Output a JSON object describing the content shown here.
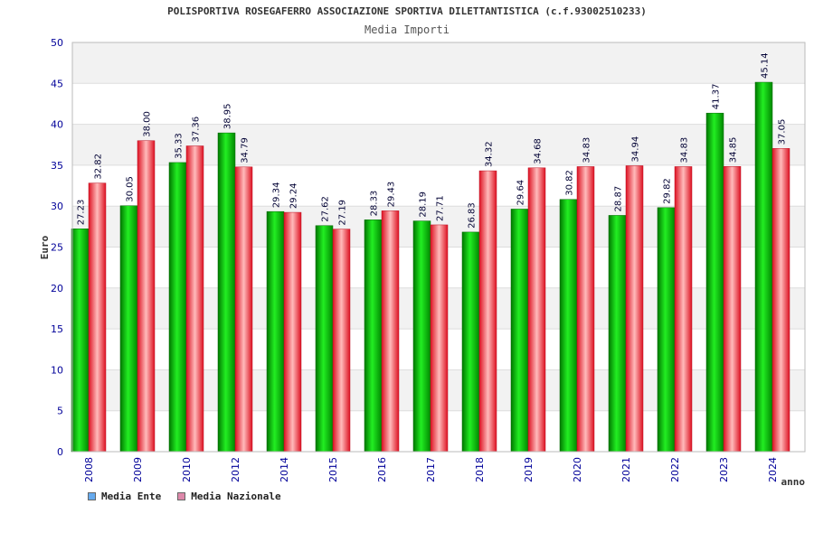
{
  "chart_data": {
    "type": "bar",
    "title": "POLISPORTIVA ROSEGAFERRO ASSOCIAZIONE SPORTIVA DILETTANTISTICA (c.f.93002510233)",
    "subtitle": "Media Importi",
    "ylabel": "Euro",
    "xlabel": "anno",
    "ylim": [
      0,
      50
    ],
    "yticks": [
      0,
      5,
      10,
      15,
      20,
      25,
      30,
      35,
      40,
      45,
      50
    ],
    "categories": [
      "2008",
      "2009",
      "2010",
      "2012",
      "2014",
      "2015",
      "2016",
      "2017",
      "2018",
      "2019",
      "2020",
      "2021",
      "2022",
      "2023",
      "2024"
    ],
    "series": [
      {
        "name": "Media Ente",
        "values": [
          27.23,
          30.05,
          35.33,
          38.95,
          29.34,
          27.62,
          28.33,
          28.19,
          26.83,
          29.64,
          30.82,
          28.87,
          29.82,
          41.37,
          45.14
        ],
        "labels": [
          "27.23",
          "30.05",
          "35.33",
          "38.95",
          "29.34",
          "27.62",
          "28.33",
          "28.19",
          "26.83",
          "29.64",
          "30.82",
          "28.87",
          "29.82",
          "41.37",
          "45.14"
        ]
      },
      {
        "name": "Media Nazionale",
        "values": [
          32.82,
          38.0,
          37.36,
          34.79,
          29.24,
          27.19,
          29.43,
          27.71,
          34.32,
          34.68,
          34.83,
          34.94,
          34.83,
          34.85,
          37.05
        ],
        "labels": [
          "32.82",
          "38.00",
          "37.36",
          "34.79",
          "29.24",
          "27.19",
          "29.43",
          "27.71",
          "34.32",
          "34.68",
          "34.83",
          "34.94",
          "34.83",
          "34.85",
          "37.05"
        ]
      }
    ],
    "grid": true,
    "legend": "bottom-left"
  },
  "colors": {
    "ente_bar": "#00bb00",
    "nazionale_bar": "#ee2233",
    "ente_legend": "#66aaee",
    "nazionale_legend": "#dd88aa",
    "band": "#f2f2f2",
    "tick_text": "#000099"
  }
}
